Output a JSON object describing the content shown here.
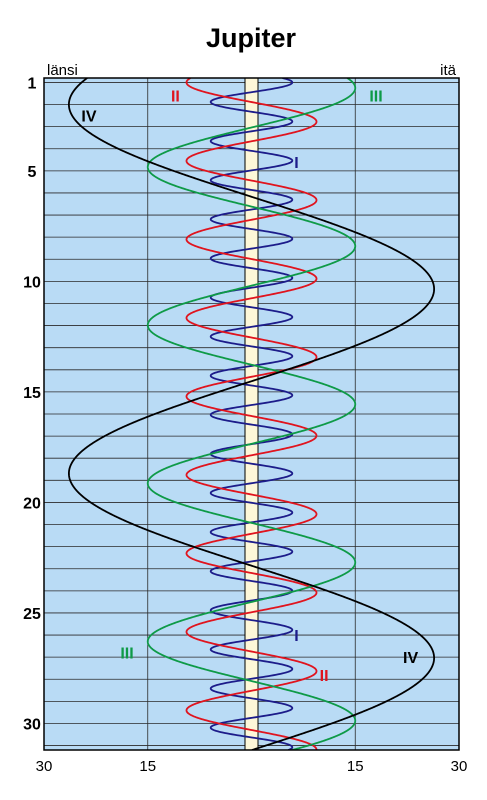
{
  "chart_data": {
    "type": "line",
    "title": "Jupiter",
    "direction_left": "länsi",
    "direction_right": "itä",
    "y_axis": {
      "min": 1,
      "max": 31,
      "reversed": true,
      "ticks": [
        1,
        5,
        10,
        15,
        20,
        25,
        30
      ]
    },
    "x_axis": {
      "min": -30,
      "max": 30,
      "ticks": [
        {
          "value": -30,
          "label": "30"
        },
        {
          "value": -15,
          "label": "15"
        },
        {
          "value": 15,
          "label": "15"
        },
        {
          "value": 30,
          "label": "30"
        }
      ]
    },
    "grid": true,
    "background_color": "#b9dbf5",
    "planet_band_color": "#fdf7d8",
    "series": [
      {
        "name": "I",
        "color": "#1c1c8a",
        "amplitude": 5.9,
        "period_days": 1.769,
        "phase_ref_day": 1.0,
        "phase_sign": 1
      },
      {
        "name": "II",
        "color": "#e0141e",
        "amplitude": 9.4,
        "period_days": 3.551,
        "phase_ref_day": 1.0,
        "phase_sign": -1
      },
      {
        "name": "III",
        "color": "#0e9a47",
        "amplitude": 15.0,
        "period_days": 7.155,
        "phase_ref_day": 1.25,
        "phase_sign": 1
      },
      {
        "name": "IV",
        "color": "#000000",
        "amplitude": 26.4,
        "period_days": 16.69,
        "phase_ref_day": 2.0,
        "phase_sign": -1
      }
    ],
    "labels": [
      {
        "text": "IV",
        "series": "IV",
        "day": 2.5,
        "x": -23.5
      },
      {
        "text": "II",
        "series": "II",
        "day": 1.6,
        "x": -11.0
      },
      {
        "text": "III",
        "series": "III",
        "day": 1.6,
        "x": 18.0
      },
      {
        "text": "I",
        "series": "I",
        "day": 4.6,
        "x": 6.5
      },
      {
        "text": "I",
        "series": "I",
        "day": 26.0,
        "x": 6.5
      },
      {
        "text": "III",
        "series": "III",
        "day": 26.8,
        "x": -18.0
      },
      {
        "text": "II",
        "series": "II",
        "day": 27.8,
        "x": 10.5
      },
      {
        "text": "IV",
        "series": "IV",
        "day": 27.0,
        "x": 23.0
      }
    ]
  }
}
